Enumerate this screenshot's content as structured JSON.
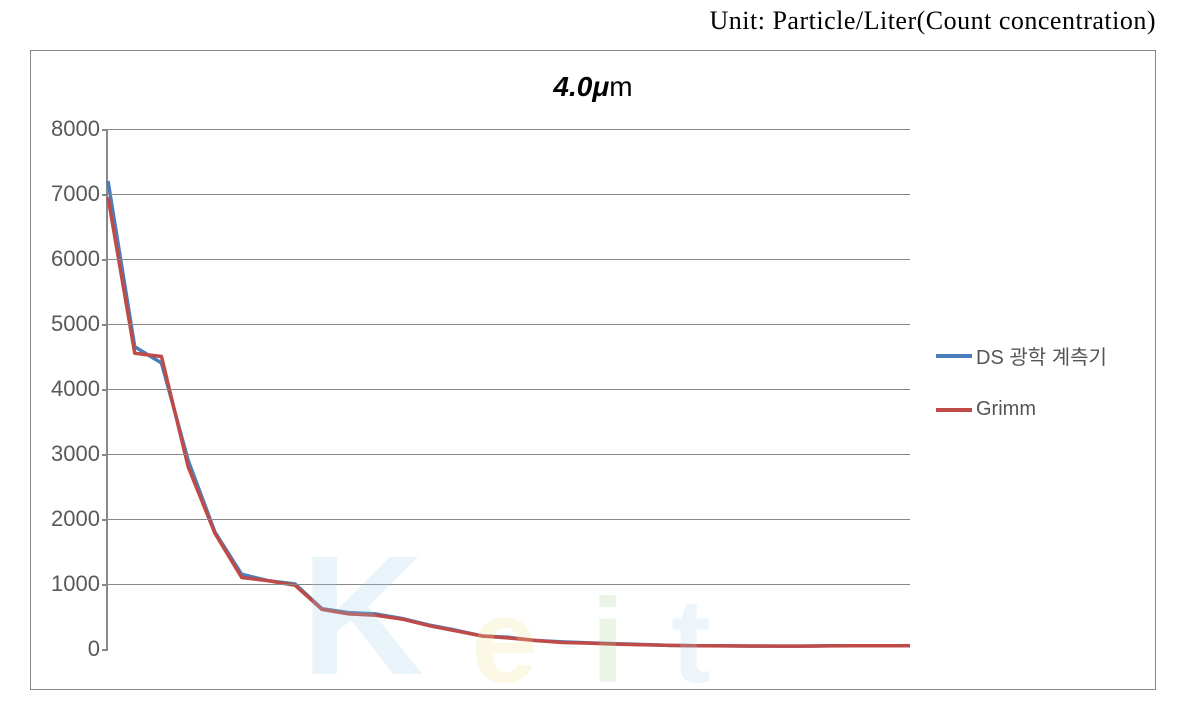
{
  "unit_label": "Unit: Particle/Liter(Count concentration)",
  "chart": {
    "type": "line",
    "title_prefix": "4.0",
    "title_mu": "μ",
    "title_m": "m",
    "title_fontsize": 28,
    "tick_fontsize": 22,
    "legend_fontsize": 20,
    "background_color": "#ffffff",
    "axis_color": "#888888",
    "grid_color": "#888888",
    "tick_label_color": "#595959",
    "xlim": [
      0,
      30
    ],
    "ylim": [
      0,
      8000
    ],
    "ytick_step": 1000,
    "yticks": [
      0,
      1000,
      2000,
      3000,
      4000,
      5000,
      6000,
      7000,
      8000
    ],
    "line_width": 3.5,
    "x_index": [
      0,
      1,
      2,
      3,
      4,
      5,
      6,
      7,
      8,
      9,
      10,
      11,
      12,
      13,
      14,
      15,
      16,
      17,
      18,
      19,
      20,
      21,
      22,
      23,
      24,
      25,
      26,
      27,
      28,
      29,
      30
    ],
    "series": [
      {
        "name": "DS 광학 계측기",
        "color": "#4a7ebb",
        "values": [
          7200,
          4650,
          4400,
          2900,
          1800,
          1150,
          1050,
          1000,
          620,
          560,
          540,
          470,
          370,
          290,
          200,
          180,
          130,
          110,
          95,
          80,
          70,
          55,
          50,
          50,
          45,
          45,
          45,
          50,
          50,
          50,
          50
        ]
      },
      {
        "name": "Grimm",
        "color": "#be4b48",
        "values": [
          6950,
          4550,
          4500,
          2800,
          1780,
          1100,
          1050,
          980,
          610,
          540,
          520,
          460,
          360,
          280,
          200,
          170,
          130,
          100,
          90,
          75,
          65,
          55,
          50,
          48,
          46,
          45,
          45,
          48,
          50,
          50,
          50
        ]
      }
    ]
  },
  "legend": {
    "items": [
      {
        "label": "DS 광학 계측기",
        "color": "#4a7ebb"
      },
      {
        "label": "Grimm",
        "color": "#be4b48"
      }
    ]
  },
  "watermark": {
    "letters": [
      "K",
      "e",
      "i",
      "t"
    ],
    "colors": [
      "#9ad2e6",
      "#f6e08f",
      "#a8d08d",
      "#b4d5ec"
    ]
  }
}
